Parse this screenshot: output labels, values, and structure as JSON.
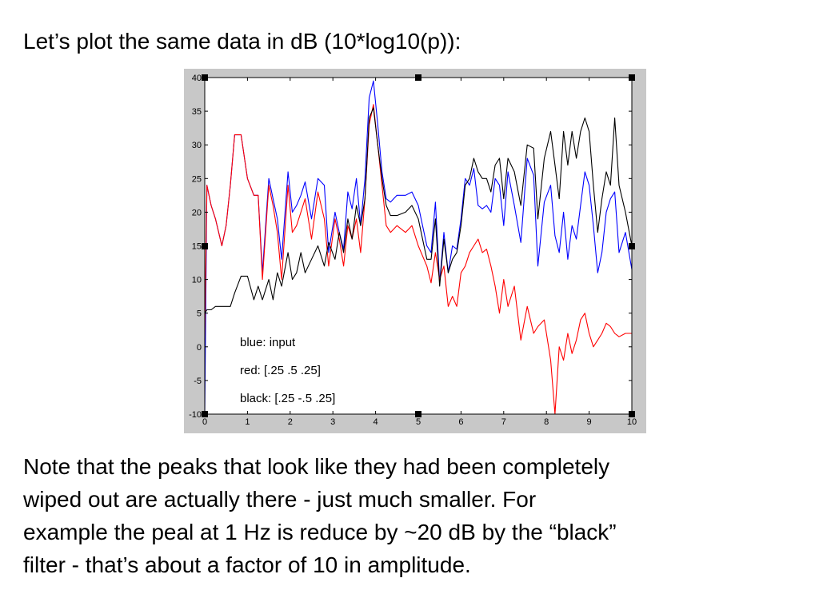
{
  "slide": {
    "heading": "Let’s plot the same data in dB (10*log10(p)):",
    "note_lines": [
      "Note that the peaks that look like they had been completely",
      "wiped out are actually there - just much smaller.  For",
      "example the peal at 1 Hz is reduce by ~20 dB by the “black”",
      "filter - that’s about a factor of 10 in amplitude."
    ]
  },
  "chart_data": {
    "type": "line",
    "title": "",
    "xlabel": "",
    "ylabel": "",
    "xlim": [
      0,
      10
    ],
    "ylim": [
      -10,
      40
    ],
    "xticks": [
      "0",
      "1",
      "2",
      "3",
      "4",
      "5",
      "6",
      "7",
      "8",
      "9",
      "10"
    ],
    "yticks": [
      "40",
      "35",
      "30",
      "25",
      "20",
      "15",
      "10",
      "5",
      "0",
      "-5",
      "-10"
    ],
    "grid": false,
    "annotations": [
      "blue: input",
      "red: [.25 .5 .25]",
      "black: [.25 -.5 .25]"
    ],
    "series": [
      {
        "color": "#0000ff",
        "x": [
          0,
          0.05,
          0.15,
          0.25,
          0.4,
          0.5,
          0.6,
          0.7,
          0.85,
          1.0,
          1.15,
          1.25,
          1.35,
          1.5,
          1.6,
          1.7,
          1.8,
          1.95,
          2.05,
          2.15,
          2.25,
          2.35,
          2.5,
          2.65,
          2.8,
          2.9,
          3.05,
          3.15,
          3.25,
          3.35,
          3.45,
          3.55,
          3.65,
          3.75,
          3.85,
          3.95,
          4.05,
          4.15,
          4.25,
          4.35,
          4.5,
          4.7,
          4.85,
          5.0,
          5.2,
          5.3,
          5.4,
          5.5,
          5.6,
          5.7,
          5.8,
          5.9,
          6.0,
          6.1,
          6.2,
          6.3,
          6.4,
          6.5,
          6.6,
          6.7,
          6.8,
          6.9,
          7.0,
          7.1,
          7.25,
          7.4,
          7.55,
          7.7,
          7.8,
          7.95,
          8.1,
          8.2,
          8.3,
          8.4,
          8.5,
          8.6,
          8.7,
          8.8,
          8.9,
          9.0,
          9.1,
          9.2,
          9.3,
          9.4,
          9.5,
          9.6,
          9.7,
          9.85,
          10.0
        ],
        "y": [
          -10,
          24,
          21,
          19,
          15,
          18,
          24,
          31.5,
          31.5,
          25,
          22.5,
          22.5,
          11,
          25,
          22,
          19,
          13,
          26,
          20,
          21,
          22.5,
          24.5,
          19,
          25,
          24,
          14,
          20,
          17,
          14.5,
          23,
          20.5,
          25,
          18,
          25,
          37,
          39.5,
          33,
          26,
          22,
          21.5,
          22.5,
          22.5,
          23,
          21,
          15,
          14,
          21.5,
          9.5,
          17,
          11,
          15,
          14.5,
          19,
          25,
          24,
          26.5,
          21,
          20.5,
          21,
          20,
          25,
          24,
          18,
          26,
          21,
          15.5,
          28,
          25.5,
          12,
          21.5,
          24,
          16.5,
          14,
          20,
          13,
          18,
          16,
          21,
          26,
          24,
          18,
          11,
          14,
          20,
          22,
          23,
          14,
          17,
          11.5
        ]
      },
      {
        "color": "#ff0000",
        "x": [
          0,
          0.05,
          0.15,
          0.25,
          0.4,
          0.5,
          0.6,
          0.7,
          0.85,
          1.0,
          1.15,
          1.25,
          1.35,
          1.5,
          1.6,
          1.7,
          1.8,
          1.95,
          2.05,
          2.15,
          2.25,
          2.35,
          2.5,
          2.65,
          2.8,
          2.9,
          3.05,
          3.15,
          3.25,
          3.35,
          3.45,
          3.55,
          3.65,
          3.75,
          3.85,
          3.95,
          4.05,
          4.15,
          4.25,
          4.35,
          4.5,
          4.7,
          4.85,
          5.0,
          5.2,
          5.3,
          5.4,
          5.5,
          5.6,
          5.7,
          5.8,
          5.9,
          6.0,
          6.1,
          6.2,
          6.3,
          6.4,
          6.5,
          6.6,
          6.7,
          6.8,
          6.9,
          7.0,
          7.1,
          7.25,
          7.4,
          7.55,
          7.7,
          7.8,
          7.95,
          8.1,
          8.2,
          8.3,
          8.4,
          8.5,
          8.6,
          8.7,
          8.8,
          8.9,
          9.0,
          9.1,
          9.2,
          9.3,
          9.4,
          9.5,
          9.6,
          9.7,
          9.85,
          10.0
        ],
        "y": [
          1,
          24,
          21,
          19,
          15,
          18,
          24,
          31.5,
          31.5,
          25,
          22.5,
          22.5,
          10,
          24,
          21,
          17,
          10,
          24,
          17,
          18,
          20,
          22,
          16,
          23,
          19,
          12,
          19,
          16,
          12,
          18,
          16,
          19,
          14,
          22,
          33,
          36,
          30,
          24,
          18,
          17,
          18,
          17,
          18,
          15,
          12,
          9.5,
          14,
          10,
          12,
          6,
          7.5,
          6,
          11,
          12,
          14,
          15,
          16,
          14,
          14.5,
          12,
          9,
          5,
          10,
          6,
          9,
          1,
          6,
          2,
          3,
          4,
          -2,
          -10,
          0,
          -2,
          2,
          -1,
          1,
          4,
          5,
          2,
          0,
          1,
          2,
          3.5,
          3,
          2,
          1.5,
          2,
          2
        ]
      },
      {
        "color": "#000000",
        "x": [
          0,
          0.05,
          0.15,
          0.25,
          0.4,
          0.5,
          0.6,
          0.7,
          0.85,
          1.0,
          1.15,
          1.25,
          1.35,
          1.5,
          1.6,
          1.7,
          1.8,
          1.95,
          2.05,
          2.15,
          2.25,
          2.35,
          2.5,
          2.65,
          2.8,
          2.9,
          3.05,
          3.15,
          3.25,
          3.35,
          3.45,
          3.55,
          3.65,
          3.75,
          3.85,
          3.95,
          4.05,
          4.15,
          4.25,
          4.35,
          4.5,
          4.7,
          4.85,
          5.0,
          5.2,
          5.3,
          5.4,
          5.5,
          5.6,
          5.7,
          5.8,
          5.9,
          6.0,
          6.1,
          6.2,
          6.3,
          6.4,
          6.5,
          6.6,
          6.7,
          6.8,
          6.9,
          7.0,
          7.1,
          7.25,
          7.4,
          7.55,
          7.7,
          7.8,
          7.95,
          8.1,
          8.2,
          8.3,
          8.4,
          8.5,
          8.6,
          8.7,
          8.8,
          8.9,
          9.0,
          9.1,
          9.2,
          9.3,
          9.4,
          9.5,
          9.6,
          9.7,
          9.85,
          10.0
        ],
        "y": [
          5,
          5.5,
          5.5,
          6,
          6,
          6,
          6,
          8,
          10.5,
          10.5,
          7,
          9,
          7,
          10,
          7,
          11,
          9,
          14,
          10,
          11,
          14,
          11,
          13,
          15,
          12,
          15.5,
          13,
          17,
          14,
          19,
          16,
          21,
          18,
          22,
          34,
          35.5,
          30,
          25,
          21,
          19.5,
          19.5,
          20,
          21,
          19,
          13,
          13,
          19,
          9,
          16,
          11,
          13,
          14,
          18,
          24,
          25,
          28,
          26,
          25,
          25,
          23,
          27,
          28,
          22,
          28,
          26,
          21,
          30,
          29.5,
          19,
          28,
          32,
          27,
          22,
          32,
          27,
          32,
          28,
          32,
          34,
          32,
          24,
          17,
          22,
          26,
          24,
          34,
          24,
          20,
          15
        ]
      }
    ]
  }
}
